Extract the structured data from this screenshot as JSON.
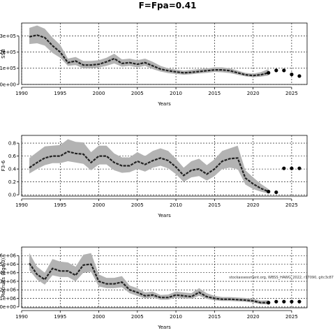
{
  "title": "F=Fpa=0.41",
  "annotation": "stockassessment.org, WBSS_HAWG_2022, r17090, gitc3c87",
  "chart_data": [
    {
      "type": "line",
      "title": "",
      "xlabel": "Years",
      "ylabel": "SSB",
      "xlim": [
        1990,
        2027
      ],
      "ylim": [
        0,
        380000
      ],
      "x_ticks": [
        1990,
        1995,
        2000,
        2005,
        2010,
        2015,
        2020,
        2025
      ],
      "y_ticks": [
        0,
        100000,
        200000,
        300000
      ],
      "y_tick_labels": [
        "0e+00",
        "1e+05",
        "2e+05",
        "3e+05"
      ],
      "grid": true,
      "series": [
        {
          "x": [
            1991,
            1992,
            1993,
            1994,
            1995,
            1996,
            1997,
            1998,
            1999,
            2000,
            2001,
            2002,
            2003,
            2004,
            2005,
            2006,
            2007,
            2008,
            2009,
            2010,
            2011,
            2012,
            2013,
            2014,
            2015,
            2016,
            2017,
            2018,
            2019,
            2020,
            2021,
            2022
          ],
          "values": [
            295000,
            305000,
            290000,
            240000,
            200000,
            135000,
            145000,
            120000,
            120000,
            125000,
            140000,
            160000,
            130000,
            135000,
            125000,
            135000,
            115000,
            95000,
            85000,
            78000,
            72000,
            75000,
            80000,
            85000,
            90000,
            90000,
            85000,
            72000,
            60000,
            55000,
            60000,
            72000
          ],
          "lower": [
            250000,
            255000,
            240000,
            195000,
            165000,
            115000,
            120000,
            100000,
            100000,
            105000,
            115000,
            130000,
            110000,
            115000,
            105000,
            115000,
            95000,
            80000,
            70000,
            65000,
            60000,
            63000,
            68000,
            72000,
            77000,
            75000,
            70000,
            60000,
            50000,
            45000,
            48000,
            55000
          ],
          "upper": [
            350000,
            365000,
            345000,
            290000,
            245000,
            160000,
            170000,
            145000,
            145000,
            150000,
            165000,
            190000,
            155000,
            160000,
            150000,
            160000,
            140000,
            115000,
            100000,
            92000,
            86000,
            90000,
            95000,
            100000,
            106000,
            106000,
            100000,
            86000,
            72000,
            67000,
            76000,
            95000
          ]
        }
      ],
      "forecast": {
        "x": [
          2022,
          2023,
          2024,
          2025,
          2026
        ],
        "values": [
          72000,
          87000,
          87000,
          62000,
          52000
        ]
      }
    },
    {
      "type": "line",
      "title": "",
      "xlabel": "Years",
      "ylabel": "F3-6",
      "xlim": [
        1990,
        2027
      ],
      "ylim": [
        -0.02,
        0.92
      ],
      "x_ticks": [
        1990,
        1995,
        2000,
        2005,
        2010,
        2015,
        2020,
        2025
      ],
      "y_ticks": [
        0,
        0.2,
        0.4,
        0.6,
        0.8
      ],
      "y_tick_labels": [
        "0.0",
        "0.2",
        "0.4",
        "0.6",
        "0.8"
      ],
      "grid": true,
      "series": [
        {
          "x": [
            1991,
            1992,
            1993,
            1994,
            1995,
            1996,
            1997,
            1998,
            1999,
            2000,
            2001,
            2002,
            2003,
            2004,
            2005,
            2006,
            2007,
            2008,
            2009,
            2010,
            2011,
            2012,
            2013,
            2014,
            2015,
            2016,
            2017,
            2018,
            2019,
            2020,
            2021,
            2022
          ],
          "values": [
            0.42,
            0.5,
            0.57,
            0.6,
            0.6,
            0.67,
            0.64,
            0.63,
            0.5,
            0.6,
            0.6,
            0.5,
            0.45,
            0.45,
            0.52,
            0.47,
            0.53,
            0.57,
            0.53,
            0.43,
            0.3,
            0.38,
            0.4,
            0.32,
            0.4,
            0.52,
            0.56,
            0.57,
            0.26,
            0.17,
            0.1,
            0.05
          ],
          "lower": [
            0.33,
            0.4,
            0.46,
            0.49,
            0.49,
            0.52,
            0.5,
            0.48,
            0.38,
            0.47,
            0.47,
            0.38,
            0.34,
            0.35,
            0.4,
            0.36,
            0.42,
            0.45,
            0.41,
            0.32,
            0.2,
            0.27,
            0.29,
            0.22,
            0.29,
            0.4,
            0.42,
            0.4,
            0.16,
            0.09,
            0.05,
            0.02
          ],
          "upper": [
            0.57,
            0.66,
            0.75,
            0.76,
            0.77,
            0.86,
            0.82,
            0.81,
            0.66,
            0.76,
            0.76,
            0.64,
            0.58,
            0.58,
            0.66,
            0.6,
            0.68,
            0.72,
            0.68,
            0.56,
            0.42,
            0.52,
            0.56,
            0.46,
            0.55,
            0.68,
            0.72,
            0.76,
            0.38,
            0.27,
            0.17,
            0.09
          ]
        }
      ],
      "forecast": {
        "x": [
          2022,
          2023,
          2024,
          2025,
          2026
        ],
        "values": [
          0.05,
          0.04,
          0.41,
          0.41,
          0.41
        ]
      }
    },
    {
      "type": "line",
      "title": "",
      "xlabel": "Years",
      "ylabel": "Recruits (age 0)",
      "xlim": [
        1990,
        2027
      ],
      "ylim": [
        -100000,
        7000000
      ],
      "x_ticks": [
        1990,
        1995,
        2000,
        2005,
        2010,
        2015,
        2020,
        2025
      ],
      "y_ticks": [
        0,
        1000000,
        2000000,
        3000000,
        4000000,
        5000000,
        6000000
      ],
      "y_tick_labels": [
        "0e+00",
        "1e+06",
        "2e+06",
        "3e+06",
        "4e+06",
        "5e+06",
        "6e+06"
      ],
      "grid": true,
      "series": [
        {
          "x": [
            1991,
            1992,
            1993,
            1994,
            1995,
            1996,
            1997,
            1998,
            1999,
            2000,
            2001,
            2002,
            2003,
            2004,
            2005,
            2006,
            2007,
            2008,
            2009,
            2010,
            2011,
            2012,
            2013,
            2014,
            2015,
            2016,
            2017,
            2018,
            2019,
            2020,
            2021,
            2022
          ],
          "values": [
            5100000,
            3800000,
            3200000,
            4500000,
            4200000,
            4200000,
            3700000,
            4900000,
            5000000,
            3000000,
            2700000,
            2700000,
            2900000,
            2000000,
            1700000,
            1300000,
            1400000,
            1100000,
            1100000,
            1400000,
            1300000,
            1200000,
            1700000,
            1200000,
            1000000,
            900000,
            900000,
            850000,
            800000,
            700000,
            500000,
            500000
          ],
          "lower": [
            4300000,
            3200000,
            2600000,
            3700000,
            3500000,
            3500000,
            3000000,
            4000000,
            4100000,
            2400000,
            2200000,
            2200000,
            2300000,
            1600000,
            1300000,
            1000000,
            1100000,
            850000,
            850000,
            1100000,
            1000000,
            950000,
            1300000,
            950000,
            780000,
            700000,
            700000,
            650000,
            600000,
            500000,
            330000,
            300000
          ],
          "upper": [
            6300000,
            4700000,
            4000000,
            5600000,
            5300000,
            5200000,
            4700000,
            6100000,
            6300000,
            3800000,
            3400000,
            3400000,
            3600000,
            2500000,
            2200000,
            1700000,
            1800000,
            1400000,
            1450000,
            1800000,
            1700000,
            1600000,
            2200000,
            1600000,
            1300000,
            1150000,
            1150000,
            1100000,
            1050000,
            950000,
            750000,
            780000
          ]
        }
      ],
      "forecast": {
        "x": [
          2022,
          2023,
          2024,
          2025,
          2026
        ],
        "values": [
          500000,
          620000,
          620000,
          620000,
          620000
        ]
      }
    }
  ]
}
